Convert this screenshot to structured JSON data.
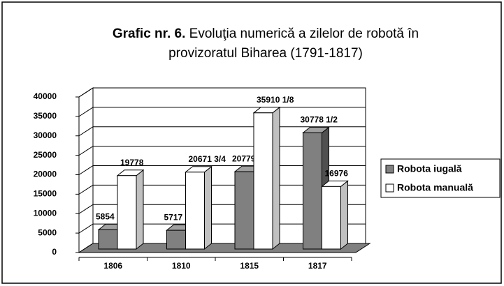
{
  "chart_data": {
    "type": "bar3d",
    "title_label": "Grafic nr. 6.",
    "title_lines": [
      "Evoluţia numerică a zilelor de robotă în",
      "provizoratul Biharea (1791-1817)"
    ],
    "categories": [
      "1806",
      "1810",
      "1815",
      "1817"
    ],
    "series": [
      {
        "name": "Robota iugală",
        "color": "#808080",
        "values": [
          5854.625,
          5717,
          20779,
          30778.5
        ],
        "value_labels": [
          "5854 5/8",
          "5717",
          "20779",
          "30778 1/2"
        ]
      },
      {
        "name": "Robota manuală",
        "color": "#ffffff",
        "values": [
          19778,
          20671.75,
          35910.125,
          16976
        ],
        "value_labels": [
          "19778",
          "20671 3/4",
          "35910 1/8",
          "16976"
        ]
      }
    ],
    "ylim": [
      0,
      40000
    ],
    "yticks": [
      0,
      5000,
      10000,
      15000,
      20000,
      25000,
      30000,
      35000,
      40000
    ],
    "grid": true,
    "legend": "right"
  }
}
